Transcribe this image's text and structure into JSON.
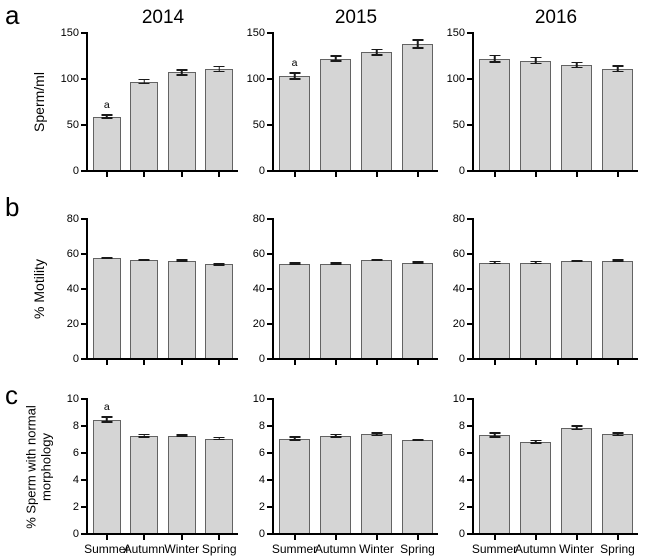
{
  "figure": {
    "row_labels": [
      "a",
      "b",
      "c"
    ],
    "column_titles": [
      "2014",
      "2015",
      "2016"
    ],
    "colors": {
      "bar_fill": "#d5d5d5",
      "bar_border": "#636363",
      "axis": "#000000",
      "error_bar": "#1a1a1a",
      "background": "#ffffff"
    }
  },
  "chart_data": [
    {
      "type": "bar",
      "row": "a",
      "col": 0,
      "title": "2014",
      "ylabel": "Sperm/ml",
      "ylim": [
        0,
        150
      ],
      "yticks": [
        0,
        50,
        100,
        150
      ],
      "categories": [
        "Summer",
        "Autumn",
        "Winter",
        "Spring"
      ],
      "values": [
        58,
        96,
        106,
        110
      ],
      "errors": [
        2.5,
        3,
        3.5,
        3.5
      ],
      "annotations": [
        "a",
        "",
        "",
        ""
      ],
      "show_xlabels": false
    },
    {
      "type": "bar",
      "row": "a",
      "col": 1,
      "title": "2015",
      "ylabel": "",
      "ylim": [
        0,
        150
      ],
      "yticks": [
        0,
        50,
        100,
        150
      ],
      "categories": [
        "Summer",
        "Autumn",
        "Winter",
        "Spring"
      ],
      "values": [
        102,
        121,
        128,
        137
      ],
      "errors": [
        4,
        3.5,
        4,
        5
      ],
      "annotations": [
        "a",
        "",
        "",
        ""
      ],
      "show_xlabels": false
    },
    {
      "type": "bar",
      "row": "a",
      "col": 2,
      "title": "2016",
      "ylabel": "",
      "ylim": [
        0,
        150
      ],
      "yticks": [
        0,
        50,
        100,
        150
      ],
      "categories": [
        "Summer",
        "Autumn",
        "Winter",
        "Spring"
      ],
      "values": [
        121,
        119,
        114,
        110
      ],
      "errors": [
        4.5,
        4,
        3.5,
        4
      ],
      "annotations": [
        "",
        "",
        "",
        ""
      ],
      "show_xlabels": false
    },
    {
      "type": "bar",
      "row": "b",
      "col": 0,
      "title": "",
      "ylabel": "% Motility",
      "ylim": [
        0,
        80
      ],
      "yticks": [
        0,
        20,
        40,
        60,
        80
      ],
      "categories": [
        "Summer",
        "Autumn",
        "Winter",
        "Spring"
      ],
      "values": [
        57,
        56,
        55.5,
        53.5
      ],
      "errors": [
        0.7,
        0.8,
        0.8,
        0.7
      ],
      "annotations": [
        "",
        "",
        "",
        ""
      ],
      "show_xlabels": false
    },
    {
      "type": "bar",
      "row": "b",
      "col": 1,
      "title": "",
      "ylabel": "",
      "ylim": [
        0,
        80
      ],
      "yticks": [
        0,
        20,
        40,
        60,
        80
      ],
      "categories": [
        "Summer",
        "Autumn",
        "Winter",
        "Spring"
      ],
      "values": [
        54,
        54,
        56,
        54.5
      ],
      "errors": [
        0.8,
        0.7,
        0.6,
        0.7
      ],
      "annotations": [
        "",
        "",
        "",
        ""
      ],
      "show_xlabels": false
    },
    {
      "type": "bar",
      "row": "b",
      "col": 2,
      "title": "",
      "ylabel": "",
      "ylim": [
        0,
        80
      ],
      "yticks": [
        0,
        20,
        40,
        60,
        80
      ],
      "categories": [
        "Summer",
        "Autumn",
        "Winter",
        "Spring"
      ],
      "values": [
        54.5,
        54.5,
        55.5,
        55.5
      ],
      "errors": [
        1,
        1,
        0.7,
        0.8
      ],
      "annotations": [
        "",
        "",
        "",
        ""
      ],
      "show_xlabels": false
    },
    {
      "type": "bar",
      "row": "c",
      "col": 0,
      "title": "",
      "ylabel": "% Sperm with normal morphology",
      "ylim": [
        0,
        10
      ],
      "yticks": [
        0,
        2,
        4,
        6,
        8,
        10
      ],
      "categories": [
        "Summer",
        "Autumn",
        "Winter",
        "Spring"
      ],
      "values": [
        8.4,
        7.2,
        7.2,
        7.0
      ],
      "errors": [
        0.25,
        0.15,
        0.12,
        0.12
      ],
      "annotations": [
        "a",
        "",
        "",
        ""
      ],
      "show_xlabels": true
    },
    {
      "type": "bar",
      "row": "c",
      "col": 1,
      "title": "",
      "ylabel": "",
      "ylim": [
        0,
        10
      ],
      "yticks": [
        0,
        2,
        4,
        6,
        8,
        10
      ],
      "categories": [
        "Summer",
        "Autumn",
        "Winter",
        "Spring"
      ],
      "values": [
        7.0,
        7.2,
        7.3,
        6.9
      ],
      "errors": [
        0.15,
        0.15,
        0.15,
        0.1
      ],
      "annotations": [
        "",
        "",
        "",
        ""
      ],
      "show_xlabels": true
    },
    {
      "type": "bar",
      "row": "c",
      "col": 2,
      "title": "",
      "ylabel": "",
      "ylim": [
        0,
        10
      ],
      "yticks": [
        0,
        2,
        4,
        6,
        8,
        10
      ],
      "categories": [
        "Summer",
        "Autumn",
        "Winter",
        "Spring"
      ],
      "values": [
        7.25,
        6.75,
        7.8,
        7.3
      ],
      "errors": [
        0.2,
        0.15,
        0.2,
        0.15
      ],
      "annotations": [
        "",
        "",
        "",
        ""
      ],
      "show_xlabels": true
    }
  ]
}
